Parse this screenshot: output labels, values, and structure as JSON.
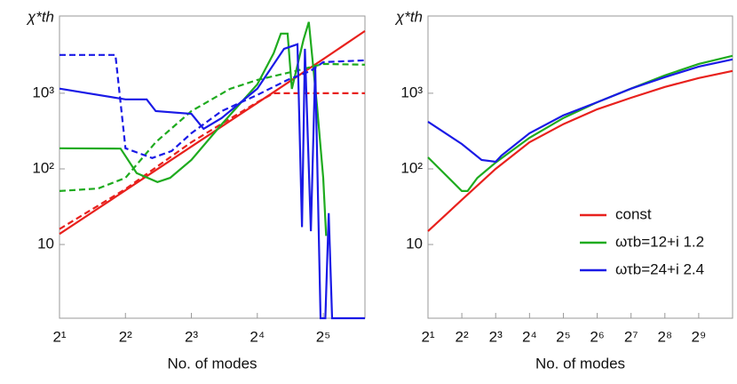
{
  "chart_data": [
    {
      "type": "line",
      "y_label": "χ*th",
      "x_label": "No. of modes",
      "log_x": true,
      "log_y": true,
      "grid": false,
      "xlim": [
        2,
        49.6
      ],
      "ylim": [
        1.06,
        10500
      ],
      "xticks": [
        {
          "value": 2,
          "label": "2¹"
        },
        {
          "value": 4,
          "label": "2²"
        },
        {
          "value": 8,
          "label": "2³"
        },
        {
          "value": 16,
          "label": "2⁴"
        },
        {
          "value": 32,
          "label": "2⁵"
        }
      ],
      "yticks": [
        10,
        {
          "value": 100,
          "label": "10²"
        },
        {
          "value": 1000,
          "label": "10³"
        }
      ],
      "series": [
        {
          "color": "#e8211d",
          "dash": false,
          "x": [
            2,
            4,
            8,
            16,
            32,
            49.6
          ],
          "values": [
            13.8,
            52,
            197,
            745,
            2820,
            6650
          ]
        },
        {
          "color": "#e8211d",
          "dash": true,
          "x": [
            2,
            4,
            8,
            16,
            19,
            24,
            32,
            49.6
          ],
          "values": [
            16,
            54,
            225,
            760,
            1000,
            1000,
            1000,
            1000
          ]
        },
        {
          "color": "#1fab1f",
          "dash": false,
          "x": [
            2,
            3.8,
            4.5,
            5.6,
            6.4,
            8,
            11,
            16,
            19,
            20.5,
            22,
            23,
            26,
            27.5,
            30,
            32,
            33
          ],
          "values": [
            187,
            185,
            88,
            67,
            76,
            131,
            388,
            1310,
            3380,
            6140,
            6140,
            1140,
            5100,
            8750,
            666,
            76,
            13
          ]
        },
        {
          "color": "#1fab1f",
          "dash": true,
          "x": [
            2,
            3,
            4,
            5.5,
            8,
            12,
            16,
            24,
            32,
            49.6
          ],
          "values": [
            51,
            55,
            76,
            225,
            580,
            1140,
            1500,
            1970,
            2440,
            2380
          ]
        },
        {
          "color": "#1a1ae6",
          "dash": false,
          "x": [
            2,
            4,
            5,
            5.5,
            8,
            9.1,
            11,
            16,
            21.2,
            24.4,
            25.6,
            26.4,
            28.1,
            29.4,
            31.1,
            32.7,
            33.9,
            35.1,
            49.6
          ],
          "values": [
            1150,
            830,
            830,
            580,
            535,
            338,
            470,
            1150,
            3870,
            4440,
            17,
            3870,
            15,
            2250,
            1.06,
            1.06,
            26,
            1.06,
            1.06
          ]
        },
        {
          "color": "#1a1ae6",
          "dash": true,
          "x": [
            2,
            3.6,
            4,
            5.3,
            6.5,
            8,
            11,
            16,
            22,
            28,
            32,
            49.6
          ],
          "values": [
            3210,
            3210,
            187,
            139,
            172,
            296,
            580,
            950,
            1500,
            1970,
            2580,
            2720
          ]
        }
      ]
    },
    {
      "type": "line",
      "y_label": "χ*th",
      "x_label": "No. of modes",
      "log_x": true,
      "log_y": true,
      "grid": false,
      "legend": "lower right",
      "xlim": [
        2,
        1024
      ],
      "ylim": [
        1.06,
        10500
      ],
      "xticks": [
        {
          "value": 2,
          "label": "2¹"
        },
        {
          "value": 4,
          "label": "2²"
        },
        {
          "value": 8,
          "label": "2³"
        },
        {
          "value": 16,
          "label": "2⁴"
        },
        {
          "value": 32,
          "label": "2⁵"
        },
        {
          "value": 64,
          "label": "2⁶"
        },
        {
          "value": 128,
          "label": "2⁷"
        },
        {
          "value": 256,
          "label": "2⁸"
        },
        {
          "value": 512,
          "label": "2⁹"
        }
      ],
      "yticks": [
        10,
        {
          "value": 100,
          "label": "10²"
        },
        {
          "value": 1000,
          "label": "10³"
        }
      ],
      "series": [
        {
          "name": "const",
          "color": "#e8211d",
          "dash": false,
          "x": [
            2,
            4,
            8,
            16,
            32,
            64,
            128,
            256,
            512,
            1024
          ],
          "values": [
            15,
            39,
            100,
            225,
            390,
            615,
            870,
            1210,
            1590,
            1970
          ]
        },
        {
          "name": "ωτb=12+i 1.2",
          "color": "#1fab1f",
          "dash": false,
          "x": [
            2,
            4,
            4.5,
            5.5,
            8,
            16,
            32,
            64,
            128,
            256,
            512,
            1024
          ],
          "values": [
            142,
            51,
            51,
            76,
            121,
            258,
            470,
            760,
            1150,
            1720,
            2440,
            3120
          ]
        },
        {
          "name": "ωτb=24+i 2.4",
          "color": "#1a1ae6",
          "dash": false,
          "x": [
            2,
            4,
            6,
            8,
            9,
            16,
            32,
            64,
            128,
            256,
            512,
            1024
          ],
          "values": [
            420,
            213,
            131,
            124,
            150,
            296,
            510,
            760,
            1150,
            1630,
            2250,
            2800
          ]
        }
      ]
    }
  ]
}
